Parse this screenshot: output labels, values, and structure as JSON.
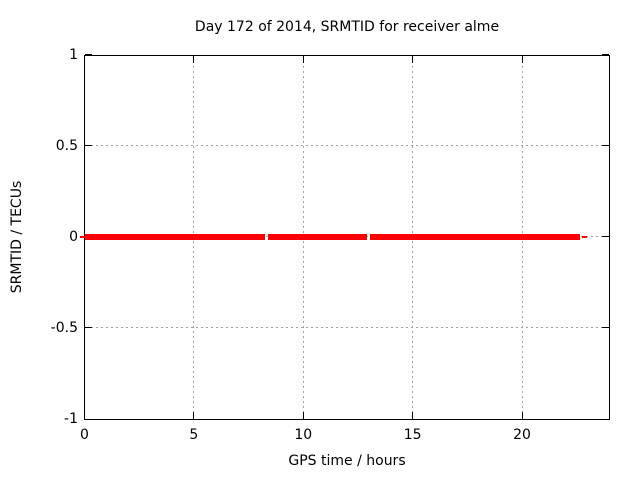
{
  "chart_data": {
    "type": "line",
    "title": "Day 172 of 2014, SRMTID for receiver alme",
    "xlabel": "GPS time / hours",
    "ylabel": "SRMTID / TECUs",
    "xlim": [
      0,
      24
    ],
    "ylim": [
      -1,
      1
    ],
    "xticks": [
      0,
      5,
      10,
      15,
      20
    ],
    "yticks": [
      -1,
      -0.5,
      0,
      0.5,
      1
    ],
    "grid": true,
    "legend": "none",
    "series": [
      {
        "name": "SRMTID",
        "y_value": 0,
        "color": "#ff0000",
        "segments_hours": [
          [
            0,
            8.25
          ],
          [
            8.37,
            12.91
          ],
          [
            13.03,
            22.65
          ]
        ],
        "thin_marks_hours": [
          [
            -0.22,
            0
          ],
          [
            22.72,
            22.97
          ]
        ]
      }
    ],
    "colors": {
      "line": "#ff0000",
      "grid": "#a0a0a0",
      "axis": "#000000",
      "text": "#000000",
      "background": "#ffffff"
    }
  }
}
